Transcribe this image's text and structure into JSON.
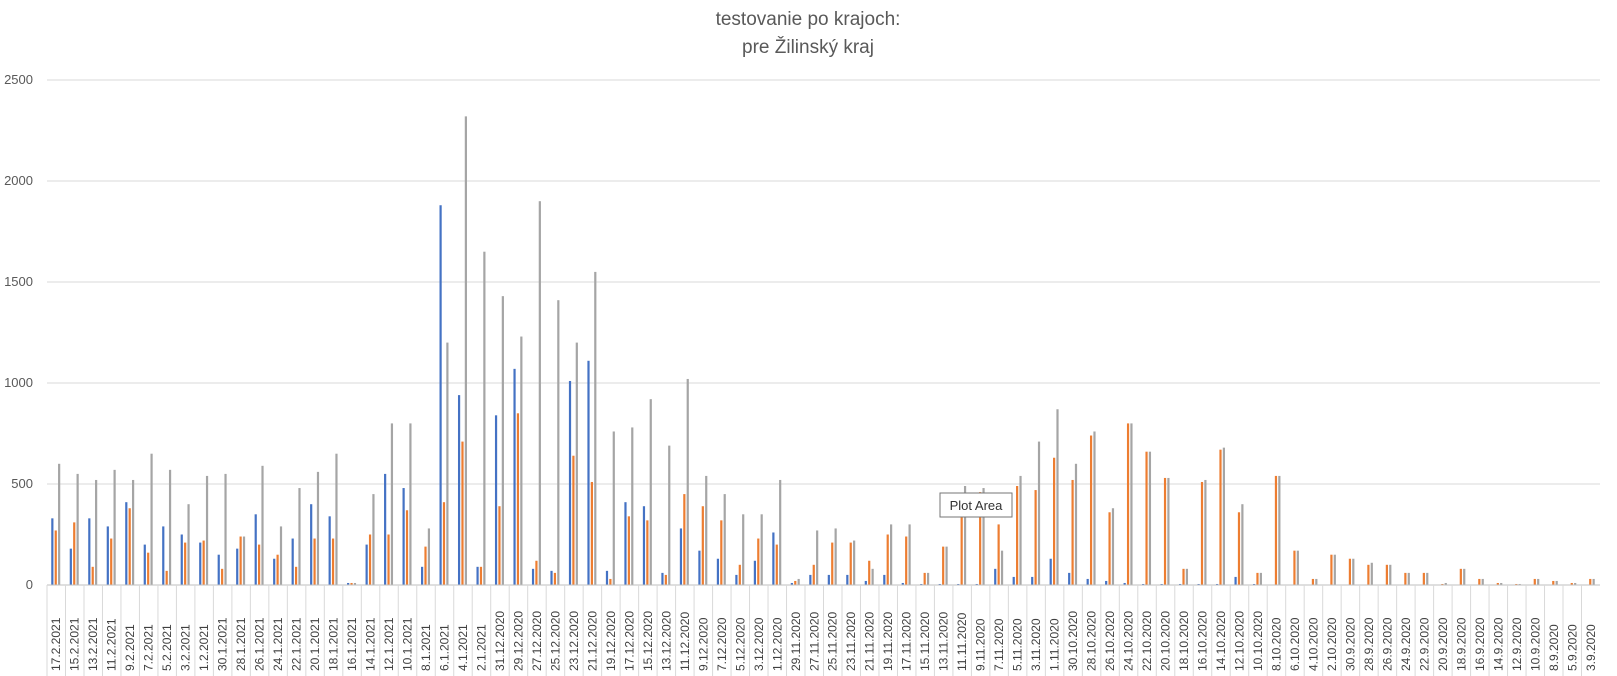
{
  "chart_data": {
    "type": "bar",
    "title": [
      "testovanie po krajoch:",
      "pre Žilinský kraj"
    ],
    "xlabel": "",
    "ylabel": "",
    "ylim": [
      0,
      2500
    ],
    "yticks": [
      0,
      500,
      1000,
      1500,
      2000,
      2500
    ],
    "grid": true,
    "legend": "none",
    "colors": [
      "#4472C4",
      "#ED7D31",
      "#A5A5A5"
    ],
    "categories": [
      "17.2.2021",
      "15.2.2021",
      "13.2.2021",
      "11.2.2021",
      "9.2.2021",
      "7.2.2021",
      "5.2.2021",
      "3.2.2021",
      "1.2.2021",
      "30.1.2021",
      "28.1.2021",
      "26.1.2021",
      "24.1.2021",
      "22.1.2021",
      "20.1.2021",
      "18.1.2021",
      "16.1.2021",
      "14.1.2021",
      "12.1.2021",
      "10.1.2021",
      "8.1.2021",
      "6.1.2021",
      "4.1.2021",
      "2.1.2021",
      "31.12.2020",
      "29.12.2020",
      "27.12.2020",
      "25.12.2020",
      "23.12.2020",
      "21.12.2020",
      "19.12.2020",
      "17.12.2020",
      "15.12.2020",
      "13.12.2020",
      "11.12.2020",
      "9.12.2020",
      "7.12.2020",
      "5.12.2020",
      "3.12.2020",
      "1.12.2020",
      "29.11.2020",
      "27.11.2020",
      "25.11.2020",
      "23.11.2020",
      "21.11.2020",
      "19.11.2020",
      "17.11.2020",
      "15.11.2020",
      "13.11.2020",
      "11.11.2020",
      "9.11.2020",
      "7.11.2020",
      "5.11.2020",
      "3.11.2020",
      "1.11.2020",
      "30.10.2020",
      "28.10.2020",
      "26.10.2020",
      "24.10.2020",
      "22.10.2020",
      "20.10.2020",
      "18.10.2020",
      "16.10.2020",
      "14.10.2020",
      "12.10.2020",
      "10.10.2020",
      "8.10.2020",
      "6.10.2020",
      "4.10.2020",
      "2.10.2020",
      "30.9.2020",
      "28.9.2020",
      "26.9.2020",
      "24.9.2020",
      "22.9.2020",
      "20.9.2020",
      "18.9.2020",
      "16.9.2020",
      "14.9.2020",
      "12.9.2020",
      "10.9.2020",
      "8.9.2020",
      "5.9.2020",
      "3.9.2020"
    ],
    "series": [
      {
        "values": [
          330,
          180,
          330,
          290,
          410,
          200,
          290,
          250,
          210,
          150,
          180,
          350,
          130,
          230,
          400,
          340,
          10,
          200,
          550,
          480,
          90,
          1880,
          940,
          90,
          840,
          1070,
          80,
          70,
          1010,
          1110,
          70,
          410,
          390,
          60,
          280,
          170,
          130,
          50,
          120,
          260,
          10,
          50,
          50,
          50,
          20,
          50,
          10,
          5,
          5,
          5,
          5,
          80,
          40,
          40,
          130,
          60,
          30,
          20,
          10,
          5,
          5,
          5,
          5,
          5,
          40,
          5,
          0,
          0,
          0,
          0,
          0,
          0,
          0,
          0,
          0,
          0,
          0,
          0,
          0,
          0,
          0,
          0,
          0,
          0
        ]
      },
      {
        "values": [
          270,
          310,
          90,
          230,
          380,
          160,
          70,
          210,
          220,
          80,
          240,
          200,
          150,
          90,
          230,
          230,
          10,
          250,
          250,
          370,
          190,
          410,
          710,
          90,
          390,
          850,
          120,
          60,
          640,
          510,
          30,
          340,
          320,
          50,
          450,
          390,
          320,
          100,
          230,
          200,
          20,
          100,
          210,
          210,
          120,
          250,
          240,
          60,
          190,
          410,
          460,
          300,
          490,
          470,
          630,
          520,
          740,
          360,
          800,
          660,
          530,
          80,
          510,
          670,
          360,
          60,
          540,
          170,
          30,
          150,
          130,
          100,
          100,
          60,
          60,
          5,
          80,
          30,
          10,
          5,
          30,
          20,
          10,
          30
        ]
      },
      {
        "values": [
          600,
          550,
          520,
          570,
          520,
          650,
          570,
          400,
          540,
          550,
          240,
          590,
          290,
          480,
          560,
          650,
          10,
          450,
          800,
          800,
          280,
          1200,
          2320,
          1650,
          1430,
          1230,
          1900,
          1410,
          1200,
          1550,
          760,
          780,
          920,
          690,
          1020,
          540,
          450,
          350,
          350,
          520,
          30,
          270,
          280,
          220,
          80,
          300,
          300,
          60,
          190,
          490,
          480,
          170,
          540,
          710,
          870,
          600,
          760,
          380,
          800,
          660,
          530,
          80,
          520,
          680,
          400,
          60,
          540,
          170,
          30,
          150,
          130,
          110,
          100,
          60,
          60,
          10,
          80,
          30,
          10,
          5,
          30,
          20,
          10,
          30
        ]
      }
    ],
    "tooltip": "Plot Area"
  }
}
